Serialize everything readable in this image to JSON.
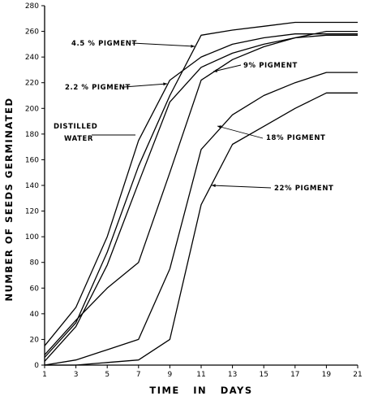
{
  "chart_data": {
    "type": "line",
    "xlabel": "TIME   IN   DAYS",
    "ylabel": "NUMBER OF SEEDS GERMINATED",
    "xlim": [
      1,
      21
    ],
    "ylim": [
      0,
      280
    ],
    "x_ticks": [
      1,
      3,
      5,
      7,
      9,
      11,
      13,
      15,
      17,
      19,
      21
    ],
    "y_ticks": [
      0,
      20,
      40,
      60,
      80,
      100,
      120,
      140,
      160,
      180,
      200,
      220,
      240,
      260,
      280
    ],
    "grid": false,
    "series": [
      {
        "name": "4.5 % PIGMENT",
        "x": [
          1,
          3,
          5,
          7,
          9,
          11,
          13,
          15,
          17,
          19,
          21
        ],
        "y": [
          6,
          33,
          88,
          155,
          210,
          257,
          261,
          264,
          267,
          267,
          267
        ]
      },
      {
        "name": "2.2 % PIGMENT",
        "x": [
          1,
          3,
          5,
          7,
          9,
          11,
          13,
          15,
          17,
          19,
          21
        ],
        "y": [
          3,
          30,
          78,
          142,
          205,
          232,
          243,
          250,
          255,
          257,
          257
        ]
      },
      {
        "name": "9% PIGMENT",
        "x": [
          1,
          3,
          5,
          7,
          9,
          11,
          13,
          15,
          17,
          19,
          21
        ],
        "y": [
          8,
          35,
          60,
          80,
          150,
          222,
          238,
          248,
          255,
          260,
          260
        ]
      },
      {
        "name": "DISTILLED WATER",
        "x": [
          1,
          3,
          5,
          7,
          9,
          11,
          13,
          15,
          17,
          19,
          21
        ],
        "y": [
          15,
          45,
          100,
          175,
          222,
          240,
          250,
          255,
          258,
          258,
          258
        ]
      },
      {
        "name": "18% PIGMENT",
        "x": [
          1,
          3,
          5,
          7,
          9,
          11,
          13,
          15,
          17,
          19,
          21
        ],
        "y": [
          0,
          4,
          12,
          20,
          75,
          168,
          195,
          210,
          220,
          228,
          228
        ]
      },
      {
        "name": "22% PIGMENT",
        "x": [
          1,
          3,
          5,
          7,
          9,
          11,
          13,
          15,
          17,
          19,
          21
        ],
        "y": [
          0,
          0,
          2,
          4,
          20,
          125,
          172,
          186,
          200,
          212,
          212
        ]
      }
    ],
    "annotations": [
      {
        "text": "4.5 % PIGMENT",
        "series": "4.5 % PIGMENT"
      },
      {
        "text": "9% PIGMENT",
        "series": "9% PIGMENT"
      },
      {
        "text": "2.2 % PIGMENT",
        "series": "2.2 % PIGMENT"
      },
      {
        "text": "DISTILLED",
        "series": "DISTILLED WATER"
      },
      {
        "text": "WATER",
        "series": "DISTILLED WATER"
      },
      {
        "text": "18% PIGMENT",
        "series": "18% PIGMENT"
      },
      {
        "text": "22% PIGMENT",
        "series": "22% PIGMENT"
      }
    ]
  }
}
